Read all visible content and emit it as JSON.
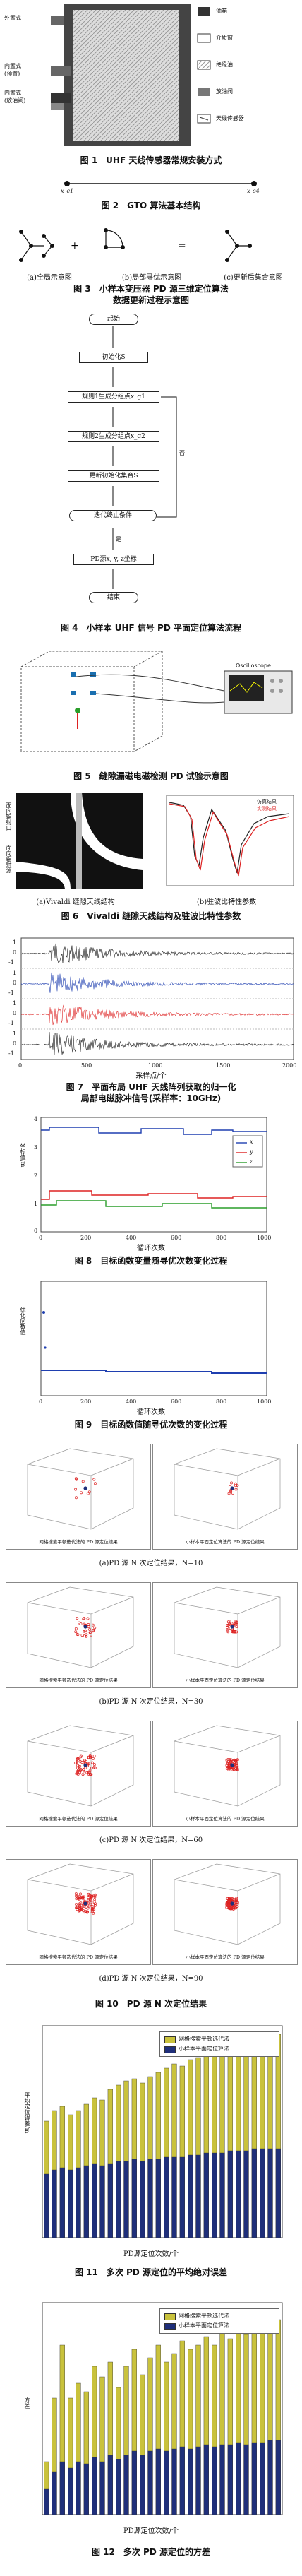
{
  "fig1": {
    "labels_left": [
      "外置式",
      "内置式\n(预置)",
      "内置式\n(放油阀)"
    ],
    "legend": [
      "油箱",
      "介质窗",
      "绝缘油",
      "放油阀",
      "天线传感器"
    ],
    "caption": "图 1　UHF 天线传感器常规安装方式"
  },
  "fig2": {
    "node_left": "x_c1",
    "node_right": "x_s4",
    "caption": "图 2　GTO 算法基本结构"
  },
  "fig3": {
    "sub_a": "(a)全局示意图",
    "sub_b": "(b)局部寻优示意图",
    "sub_c": "(c)更新后集合意图",
    "caption_line1": "图 3　小样本变压器 PD 源三维定位算法",
    "caption_line2": "数据更新过程示意图"
  },
  "fig4": {
    "steps": [
      "起始",
      "初始化S",
      "规则1生成分组点x_g1",
      "规则2生成分组点x_g2",
      "更新初始化集合S",
      "迭代终止条件",
      "PD源x, y, z坐标",
      "结束"
    ],
    "yes": "是",
    "no": "否",
    "caption": "图 4　小样本 UHF 信号 PD 平面定位算法流程"
  },
  "fig5": {
    "oscilloscope": "Oscilloscope",
    "caption": "图 5　缝隙漏磁电磁检测 PD 试验示意图"
  },
  "fig6": {
    "side_top": "面向辐射口",
    "side_bottom": "面向辐射源",
    "legend": [
      "仿真结果",
      "实测结果"
    ],
    "sub_a": "(a)Vivaldi 缝隙天线结构",
    "sub_b": "(b)驻波比特性参数",
    "caption": "图 6　Vivaldi 缝隙天线结构及驻波比特性参数"
  },
  "fig7": {
    "ylabels": [
      "1",
      "0",
      "-1",
      "1",
      "0",
      "-1",
      "1",
      "0",
      "-1",
      "1",
      "0",
      "-1"
    ],
    "xticks": [
      "0",
      "500",
      "1000",
      "1500",
      "2000"
    ],
    "xlabel": "采样点/个",
    "caption_line1": "图 7　平面布局 UHF 天线阵列获取的归一化",
    "caption_line2": "局部电磁脉冲信号(采样率：10GHz)"
  },
  "fig8": {
    "ylabel": "坐标值/m",
    "xlabel": "循环次数",
    "xticks": [
      "0",
      "200",
      "400",
      "600",
      "800",
      "1000"
    ],
    "yticks": [
      "0",
      "1",
      "2",
      "3",
      "4"
    ],
    "legend": [
      "x",
      "y",
      "z"
    ],
    "caption": "图 8　目标函数变量随寻优次数变化过程"
  },
  "fig9": {
    "ylabel": "优化函数值",
    "xlabel": "循环次数",
    "xticks": [
      "0",
      "200",
      "400",
      "600",
      "800",
      "1000"
    ],
    "caption": "图 9　目标函数值随寻优次数的变化过程"
  },
  "fig10": {
    "panel_left_label": "网格搜索平顿选代法的 PD 源定位结果",
    "panel_right_label": "小样本平面定位算法的 PD 源定位结果",
    "subs": [
      "(a)PD 源 N 次定位结果，N=10",
      "(b)PD 源 N 次定位结果，N=30",
      "(c)PD 源 N 次定位结果，N=60",
      "(d)PD 源 N 次定位结果，N=90"
    ],
    "caption": "图 10　PD 源 N 次定位结果"
  },
  "fig11": {
    "ylabel": "平均定位误差/m",
    "xlabel": "PD源定位次数/个",
    "legend": [
      "网格搜索平顿选代法",
      "小样本平面定位算法"
    ],
    "caption": "图 11　多次 PD 源定位的平均绝对误差"
  },
  "fig12": {
    "ylabel": "方差",
    "xlabel": "PD源定位次数/个",
    "legend": [
      "网格搜索平顿选代法",
      "小样本平面定位算法"
    ],
    "caption": "图 12　多次 PD 源定位的方差"
  },
  "chart_data": [
    {
      "type": "bar",
      "title": "",
      "xlabel": "PD源定位次数/个",
      "ylabel": "平均定位误差/m",
      "ylim": [
        0,
        1
      ],
      "series": [
        {
          "name": "网格搜索平顿选代法",
          "values": [
            0.55,
            0.6,
            0.62,
            0.58,
            0.6,
            0.63,
            0.66,
            0.65,
            0.7,
            0.72,
            0.74,
            0.75,
            0.73,
            0.76,
            0.78,
            0.8,
            0.82,
            0.81,
            0.84,
            0.85,
            0.86,
            0.88,
            0.87,
            0.9,
            0.92,
            0.93,
            0.94,
            0.95,
            0.95,
            0.96
          ]
        },
        {
          "name": "小样本平面定位算法",
          "values": [
            0.3,
            0.32,
            0.33,
            0.32,
            0.33,
            0.34,
            0.35,
            0.34,
            0.35,
            0.36,
            0.36,
            0.37,
            0.36,
            0.37,
            0.37,
            0.38,
            0.38,
            0.38,
            0.39,
            0.39,
            0.4,
            0.4,
            0.4,
            0.41,
            0.41,
            0.41,
            0.42,
            0.42,
            0.42,
            0.42
          ]
        }
      ]
    },
    {
      "type": "bar",
      "title": "",
      "xlabel": "PD源定位次数/个",
      "ylabel": "方差",
      "ylim": [
        0,
        1
      ],
      "series": [
        {
          "name": "网格搜索平顿选代法",
          "values": [
            0.25,
            0.55,
            0.8,
            0.55,
            0.62,
            0.58,
            0.7,
            0.65,
            0.72,
            0.6,
            0.7,
            0.78,
            0.66,
            0.74,
            0.8,
            0.72,
            0.76,
            0.82,
            0.78,
            0.8,
            0.84,
            0.8,
            0.86,
            0.83,
            0.88,
            0.85,
            0.9,
            0.87,
            0.9,
            0.92
          ]
        },
        {
          "name": "小样本平面定位算法",
          "values": [
            0.12,
            0.2,
            0.25,
            0.22,
            0.25,
            0.24,
            0.27,
            0.25,
            0.28,
            0.26,
            0.28,
            0.3,
            0.28,
            0.3,
            0.31,
            0.3,
            0.31,
            0.32,
            0.31,
            0.32,
            0.33,
            0.32,
            0.33,
            0.33,
            0.34,
            0.33,
            0.34,
            0.34,
            0.35,
            0.35
          ]
        }
      ]
    }
  ]
}
